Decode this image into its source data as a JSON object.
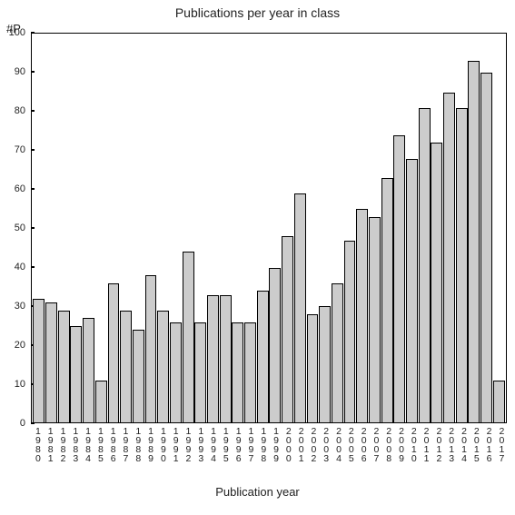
{
  "chart": {
    "type": "bar",
    "title": "Publications per year in class",
    "title_fontsize": 14,
    "y_axis_label": "#P",
    "x_axis_title": "Publication year",
    "label_fontsize": 13,
    "tick_fontsize": 11,
    "background_color": "#ffffff",
    "bar_fill_color": "#cccccc",
    "bar_border_color": "#000000",
    "axis_color": "#000000",
    "ylim": [
      0,
      100
    ],
    "ytick_step": 10,
    "yticks": [
      0,
      10,
      20,
      30,
      40,
      50,
      60,
      70,
      80,
      90,
      100
    ],
    "categories": [
      "1980",
      "1981",
      "1982",
      "1983",
      "1984",
      "1985",
      "1986",
      "1987",
      "1988",
      "1989",
      "1990",
      "1991",
      "1992",
      "1993",
      "1994",
      "1995",
      "1996",
      "1997",
      "1998",
      "1999",
      "2000",
      "2001",
      "2002",
      "2003",
      "2004",
      "2005",
      "2006",
      "2007",
      "2008",
      "2009",
      "2010",
      "2011",
      "2012",
      "2013",
      "2014",
      "2015",
      "2016",
      "2017"
    ],
    "values": [
      32,
      31,
      29,
      25,
      27,
      11,
      36,
      29,
      24,
      38,
      29,
      26,
      44,
      26,
      33,
      33,
      26,
      26,
      34,
      40,
      48,
      59,
      28,
      30,
      36,
      47,
      55,
      53,
      63,
      74,
      68,
      81,
      72,
      85,
      81,
      93,
      90,
      11
    ]
  }
}
